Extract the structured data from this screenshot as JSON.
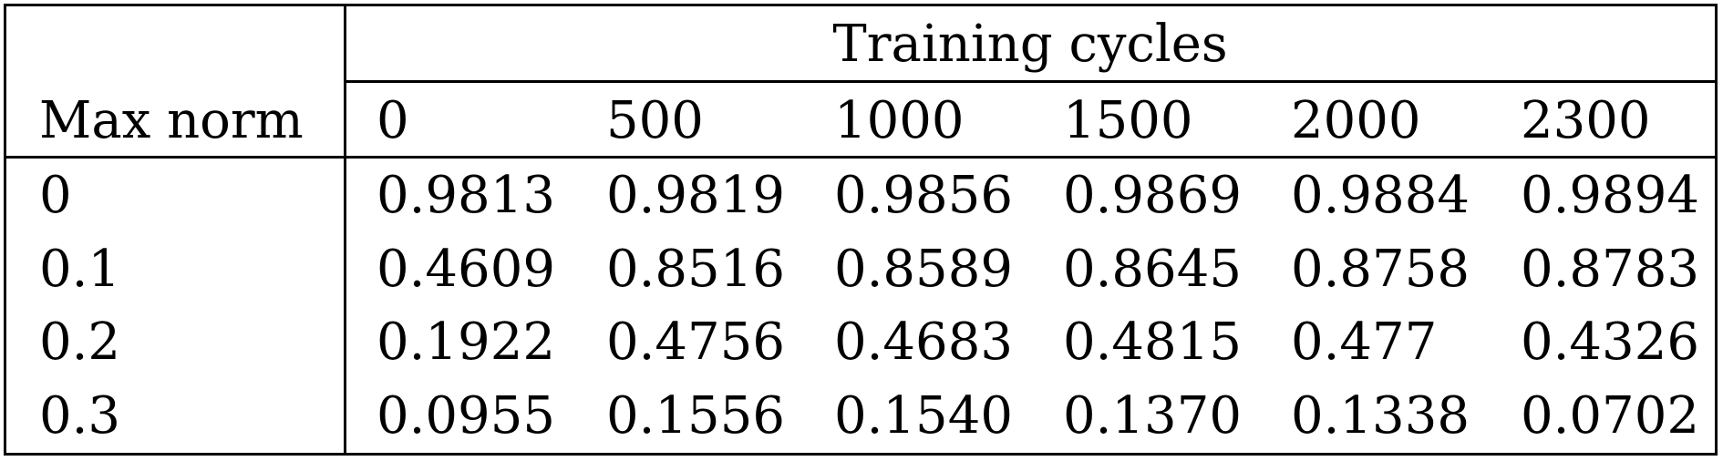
{
  "table": {
    "group_header": "Training cycles",
    "row_header_label": "Max norm",
    "columns": [
      "0",
      "500",
      "1000",
      "1500",
      "2000",
      "2300"
    ],
    "rows": [
      {
        "label": "0",
        "values": [
          "0.9813",
          "0.9819",
          "0.9856",
          "0.9869",
          "0.9884",
          "0.9894"
        ]
      },
      {
        "label": "0.1",
        "values": [
          "0.4609",
          "0.8516",
          "0.8589",
          "0.8645",
          "0.8758",
          "0.8783"
        ]
      },
      {
        "label": "0.2",
        "values": [
          "0.1922",
          "0.4756",
          "0.4683",
          "0.4815",
          "0.477",
          "0.4326"
        ]
      },
      {
        "label": "0.3",
        "values": [
          "0.0955",
          "0.1556",
          "0.1540",
          "0.1370",
          "0.1338",
          "0.0702"
        ]
      }
    ]
  }
}
